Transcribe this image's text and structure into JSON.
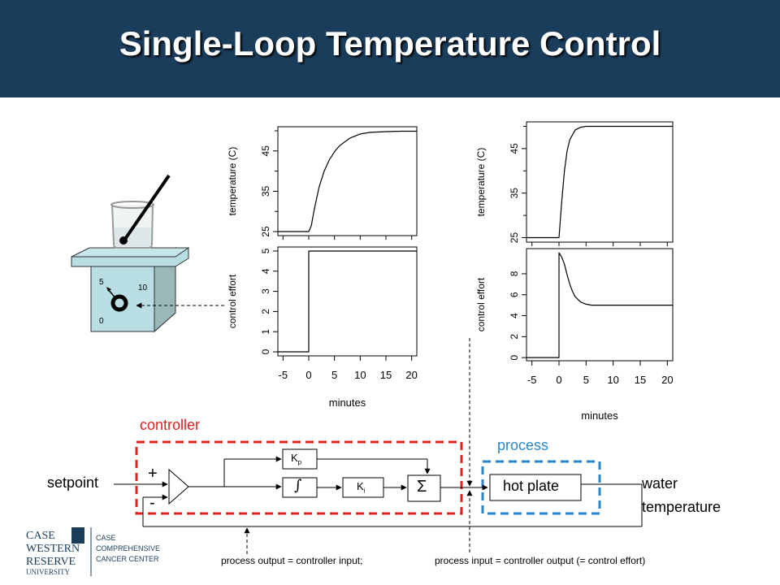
{
  "slide": {
    "title": "Single-Loop Temperature Control"
  },
  "hotplate": {
    "dial_labels": [
      "5",
      "10",
      "0"
    ]
  },
  "chart_data": [
    {
      "type": "line",
      "panel": "left-top",
      "ylabel": "temperature (C)",
      "xlim": [
        -6,
        21
      ],
      "ylim": [
        24,
        51
      ],
      "yticks": [
        "25",
        "35",
        "45"
      ],
      "series": [
        {
          "x": [
            -6,
            0,
            0.5,
            1,
            2,
            3,
            4,
            5,
            6,
            8,
            10,
            12,
            15,
            18,
            21
          ],
          "values": [
            25,
            25,
            26.5,
            30,
            36,
            40,
            42.8,
            44.8,
            46.3,
            48.2,
            49.2,
            49.6,
            49.8,
            49.9,
            49.9
          ]
        }
      ]
    },
    {
      "type": "line",
      "panel": "left-bottom",
      "ylabel": "control effort",
      "xlabel": "minutes",
      "xlim": [
        -6,
        21
      ],
      "ylim": [
        -0.2,
        5.2
      ],
      "xticks": [
        "-5",
        "0",
        "5",
        "10",
        "15",
        "20"
      ],
      "yticks": [
        "0",
        "1",
        "2",
        "3",
        "4",
        "5"
      ],
      "series": [
        {
          "x": [
            -6,
            0,
            0,
            21
          ],
          "values": [
            0,
            0,
            5,
            5
          ]
        }
      ]
    },
    {
      "type": "line",
      "panel": "right-top",
      "ylabel": "temperature (C)",
      "xlim": [
        -6,
        21
      ],
      "ylim": [
        24,
        51
      ],
      "yticks": [
        "25",
        "35",
        "45"
      ],
      "series": [
        {
          "x": [
            -6,
            0,
            0.5,
            1,
            1.5,
            2,
            3,
            4,
            5,
            6,
            8,
            21
          ],
          "values": [
            25,
            25,
            33,
            40,
            44.5,
            47,
            49.2,
            49.8,
            50,
            50,
            50,
            50
          ]
        }
      ]
    },
    {
      "type": "line",
      "panel": "right-bottom",
      "ylabel": "control effort",
      "xlabel": "minutes",
      "xlim": [
        -6,
        21
      ],
      "ylim": [
        -0.3,
        10.4
      ],
      "xticks": [
        "-5",
        "0",
        "5",
        "10",
        "15",
        "20"
      ],
      "yticks": [
        "0",
        "2",
        "4",
        "6",
        "8"
      ],
      "series": [
        {
          "x": [
            -6,
            0,
            0,
            0.5,
            1,
            1.5,
            2,
            2.5,
            3,
            4,
            5,
            6,
            8,
            21
          ],
          "values": [
            0,
            0,
            10,
            9.6,
            8.9,
            7.9,
            7.0,
            6.3,
            5.8,
            5.3,
            5.1,
            5.0,
            5.0,
            5.0
          ]
        }
      ]
    }
  ],
  "diagram": {
    "controller_label": "controller",
    "process_label": "process",
    "setpoint": "setpoint",
    "plus": "+",
    "minus": "-",
    "kp": "K",
    "kp_sub": "p",
    "integral": "∫",
    "ki": "K",
    "ki_sub": "i",
    "sum": "Σ",
    "hot_plate": "hot plate",
    "output_line1": "water",
    "output_line2": "temperature",
    "note_left": "process output = controller input;",
    "note_right": "process input = controller output (= control effort)"
  },
  "logo": {
    "line1": "CASE",
    "line2": "WESTERN",
    "line3": "RESERVE",
    "line4": "UNIVERSITY",
    "right1": "CASE",
    "right2": "COMPREHENSIVE",
    "right3": "CANCER CENTER"
  },
  "colors": {
    "header": "#1a3d5c",
    "controller": "#e02020",
    "process": "#2a86c8"
  }
}
